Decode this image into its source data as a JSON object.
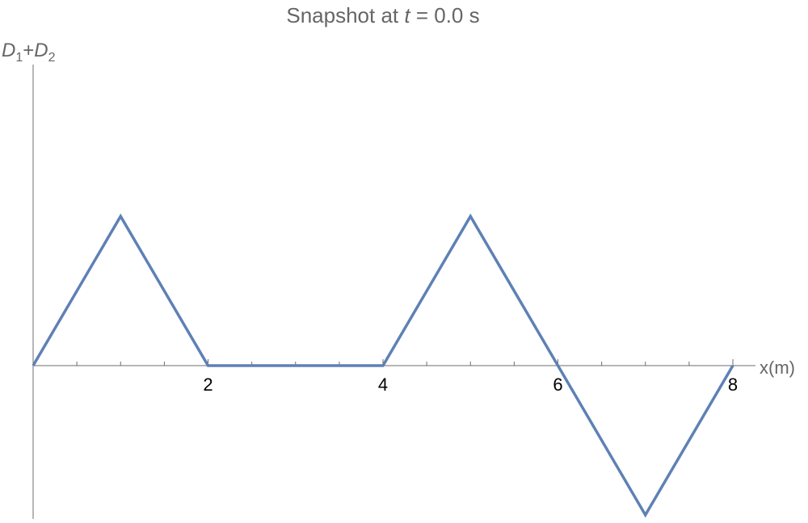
{
  "chart_data": {
    "type": "line",
    "title_prefix": "Snapshot at ",
    "title_var": "t",
    "title_suffix": " = 0.0 s",
    "xlabel": "x(m)",
    "ylabel_parts": [
      "D",
      "1",
      "+",
      "D",
      "2"
    ],
    "xlim": [
      0,
      8
    ],
    "ylim": [
      -1,
      2
    ],
    "xticks": [
      2,
      4,
      6,
      8
    ],
    "x_minor_step": 0.5,
    "grid": false,
    "series": [
      {
        "x": [
          0,
          1,
          2,
          4,
          5,
          6,
          7,
          8
        ],
        "y": [
          0,
          1,
          0,
          0,
          1,
          0,
          -1,
          0
        ]
      }
    ],
    "colors": {
      "line": "#5e81b5",
      "axis": "#6e6e6e",
      "title": "#666666"
    }
  }
}
